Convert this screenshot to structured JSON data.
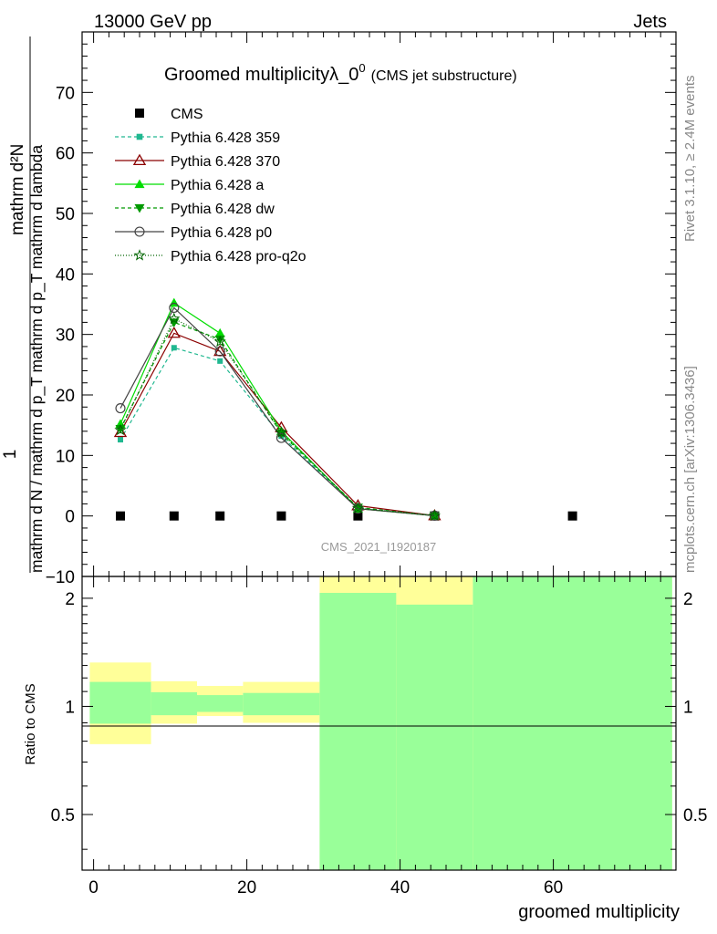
{
  "header": {
    "left": "13000 GeV pp",
    "right": "Jets"
  },
  "side_labels": {
    "rivet": "Rivet 3.1.10, ≥ 2.4M events",
    "mcplots": "mcplots.cern.ch [arXiv:1306.3436]"
  },
  "colors": {
    "cms": "#000000",
    "p359": "#20b890",
    "p370": "#8b0000",
    "pa": "#00dd00",
    "pdw": "#009900",
    "pp0": "#444444",
    "ppro": "#006400",
    "band_yellow": "#ffff99",
    "band_green": "#99ff99"
  },
  "chart_data": [
    {
      "type": "line",
      "title": "Groomed multiplicityλ_0",
      "title_sup": "0",
      "title_sub": "(CMS jet substructure)",
      "watermark": "CMS_2021_I1920187",
      "ylabel_numer": "mathrm d²N",
      "ylabel_denom": "mathrm d N / mathrm d p_T mathrm d p_T mathrm d lambda",
      "ylabel_one": "1",
      "xlim": [
        -1.5,
        76
      ],
      "ylim": [
        -10,
        80
      ],
      "yticks": [
        -10,
        0,
        10,
        20,
        30,
        40,
        50,
        60,
        70
      ],
      "ytick_labels": [
        "−10",
        "0",
        "10",
        "20",
        "30",
        "40",
        "50",
        "60",
        "70"
      ],
      "grid": false,
      "legend_position": "top-left",
      "series": [
        {
          "name": "CMS",
          "key": "cms",
          "style": "data",
          "marker": "square",
          "x": [
            3.5,
            10.5,
            16.5,
            24.5,
            34.5,
            44.5,
            62.5
          ],
          "y": [
            0,
            0,
            0,
            0,
            0,
            0,
            0
          ]
        },
        {
          "name": "Pythia 6.428 359",
          "key": "p359",
          "dash": "4,3",
          "marker": "smallsquare",
          "x": [
            3.5,
            10.5,
            16.5,
            24.5,
            34.5,
            44.5
          ],
          "y": [
            12.6,
            27.8,
            25.6,
            13.2,
            1.3,
            0.05
          ]
        },
        {
          "name": "Pythia 6.428 370",
          "key": "p370",
          "dash": "",
          "marker": "triangle-open",
          "x": [
            3.5,
            10.5,
            16.5,
            24.5,
            34.5,
            44.5
          ],
          "y": [
            13.8,
            30.2,
            27.2,
            14.6,
            1.7,
            0.05
          ]
        },
        {
          "name": "Pythia 6.428 a",
          "key": "pa",
          "dash": "",
          "marker": "triangle",
          "x": [
            3.5,
            10.5,
            16.5,
            24.5,
            34.5,
            44.5
          ],
          "y": [
            15.2,
            35.2,
            30.2,
            14.0,
            1.2,
            0.05
          ]
        },
        {
          "name": "Pythia 6.428 dw",
          "key": "pdw",
          "dash": "4,3",
          "marker": "triangle-down",
          "x": [
            3.5,
            10.5,
            16.5,
            24.5,
            34.5,
            44.5
          ],
          "y": [
            14.4,
            32.0,
            29.2,
            13.6,
            1.4,
            0.05
          ]
        },
        {
          "name": "Pythia 6.428 p0",
          "key": "pp0",
          "dash": "",
          "marker": "circle-open",
          "x": [
            3.5,
            10.5,
            16.5,
            24.5,
            34.5,
            44.5
          ],
          "y": [
            17.8,
            34.4,
            27.2,
            12.9,
            1.2,
            0.05
          ]
        },
        {
          "name": "Pythia 6.428 pro-q2o",
          "key": "ppro",
          "dash": "1,2",
          "marker": "star",
          "x": [
            3.5,
            10.5,
            16.5,
            24.5,
            34.5,
            44.5
          ],
          "y": [
            14.2,
            32.6,
            28.8,
            13.8,
            1.3,
            0.05
          ]
        }
      ]
    },
    {
      "type": "area",
      "xlabel": "groomed multiplicity",
      "ylabel": "Ratio to CMS",
      "xlim": [
        -1.5,
        76
      ],
      "ylim": [
        0.35,
        2.3
      ],
      "yscale": "log",
      "ratio_line": 1,
      "xticks": [
        0,
        20,
        40,
        60
      ],
      "xtick_labels": [
        "0",
        "20",
        "40",
        "60"
      ],
      "yticks": [
        0.5,
        1,
        2
      ],
      "ytick_labels": [
        "0.5",
        "1",
        "2"
      ],
      "bins": [
        {
          "x0": -0.5,
          "x1": 7.5,
          "stat_lo": 0.895,
          "stat_hi": 1.17,
          "tot_lo": 0.785,
          "tot_hi": 1.325
        },
        {
          "x0": 7.5,
          "x1": 13.5,
          "stat_lo": 0.945,
          "stat_hi": 1.095,
          "tot_lo": 0.895,
          "tot_hi": 1.175
        },
        {
          "x0": 13.5,
          "x1": 19.5,
          "stat_lo": 0.965,
          "stat_hi": 1.075,
          "tot_lo": 0.94,
          "tot_hi": 1.14
        },
        {
          "x0": 19.5,
          "x1": 29.5,
          "stat_lo": 0.945,
          "stat_hi": 1.09,
          "tot_lo": 0.9,
          "tot_hi": 1.17
        },
        {
          "x0": 29.5,
          "x1": 39.5,
          "stat_lo": 0.35,
          "stat_hi": 2.07,
          "tot_lo": 0.35,
          "tot_hi": 2.3
        },
        {
          "x0": 39.5,
          "x1": 49.5,
          "stat_lo": 0.35,
          "stat_hi": 1.92,
          "tot_lo": 0.35,
          "tot_hi": 2.3
        },
        {
          "x0": 49.5,
          "x1": 75.5,
          "stat_lo": 0.35,
          "stat_hi": 2.3,
          "tot_lo": 0.35,
          "tot_hi": 2.3
        }
      ]
    }
  ]
}
